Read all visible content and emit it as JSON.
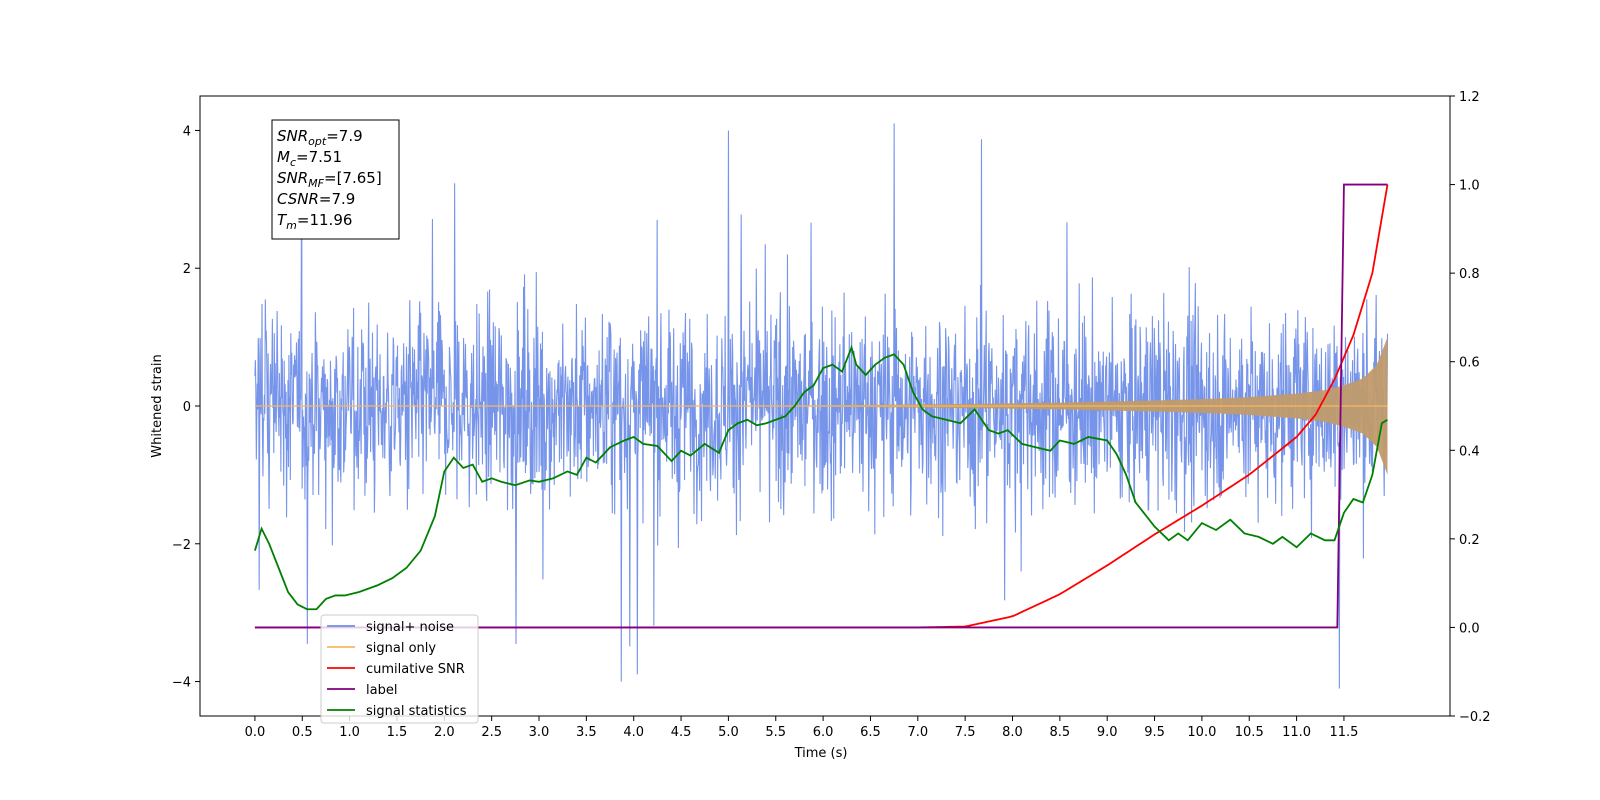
{
  "chart_data": {
    "type": "line",
    "title": "",
    "xlabel": "Time (s)",
    "ylabel": "Whitened strain",
    "xlim": [
      -0.58,
      12.62
    ],
    "ylim": [
      -4.5,
      4.5
    ],
    "ylim_right": [
      -0.2,
      1.2
    ],
    "xticks": [
      0.0,
      0.5,
      1.0,
      1.5,
      2.0,
      2.5,
      3.0,
      3.5,
      4.0,
      4.5,
      5.0,
      5.5,
      6.0,
      6.5,
      7.0,
      7.5,
      8.0,
      8.5,
      9.0,
      9.5,
      10.0,
      10.5,
      11.0,
      11.5
    ],
    "xtick_labels": [
      "0.0",
      "0.5",
      "1.0",
      "1.5",
      "2.0",
      "2.5",
      "3.0",
      "3.5",
      "4.0",
      "4.5",
      "5.0",
      "5.5",
      "6.0",
      "6.5",
      "7.0",
      "7.5",
      "8.0",
      "8.5",
      "9.0",
      "9.5",
      "10.0",
      "10.5",
      "11.0",
      "11.5"
    ],
    "yticks_left": [
      -4,
      -2,
      0,
      2,
      4
    ],
    "ytick_labels_left": [
      "−4",
      "−2",
      "0",
      "2",
      "4"
    ],
    "yticks_right": [
      -0.2,
      0.0,
      0.2,
      0.4,
      0.6,
      0.8,
      1.0,
      1.2
    ],
    "ytick_labels_right": [
      "−0.2",
      "0.0",
      "0.2",
      "0.4",
      "0.6",
      "0.8",
      "1.0",
      "1.2"
    ],
    "grid": false,
    "legend_position": "lower-left",
    "duration": 11.96,
    "annotation": {
      "lines": [
        {
          "main": "SNR",
          "sub": "opt",
          "rest": "=7.9"
        },
        {
          "main": "M",
          "sub": "c",
          "rest": "=7.51"
        },
        {
          "main": "SNR",
          "sub": "MF",
          "rest": "=[7.65]"
        },
        {
          "main": "CSNR",
          "sub": "",
          "rest": "=7.9"
        },
        {
          "main": "T",
          "sub": "m",
          "rest": "=11.96"
        }
      ]
    },
    "series": [
      {
        "name": "signal+ noise",
        "axis": "left",
        "color": "#6f8ee8",
        "description": "dense whitened noise time series, typical range -2 to 2, peaks near +4.1 at 6.75 s and near -4.1 at 11.45 s"
      },
      {
        "name": "signal only",
        "axis": "left",
        "color": "#f5b95f",
        "envelope": {
          "x": [
            0.0,
            2.0,
            4.0,
            6.0,
            7.5,
            8.5,
            9.5,
            10.0,
            10.5,
            11.0,
            11.3,
            11.5,
            11.7,
            11.85,
            11.96
          ],
          "amplitude": [
            0.0,
            0.0,
            0.005,
            0.01,
            0.03,
            0.05,
            0.08,
            0.1,
            0.13,
            0.18,
            0.23,
            0.3,
            0.4,
            0.6,
            1.0
          ]
        }
      },
      {
        "name": "cumilative SNR",
        "axis": "right",
        "color": "#ff0000",
        "x": [
          0.0,
          7.0,
          7.5,
          8.0,
          8.5,
          9.0,
          9.5,
          10.0,
          10.5,
          11.0,
          11.2,
          11.4,
          11.6,
          11.8,
          11.96
        ],
        "values": [
          0.0,
          0.0,
          0.002,
          0.025,
          0.075,
          0.14,
          0.21,
          0.275,
          0.345,
          0.43,
          0.48,
          0.56,
          0.66,
          0.8,
          1.0
        ]
      },
      {
        "name": "label",
        "axis": "right",
        "color": "#800080",
        "x": [
          0.0,
          11.43,
          11.5,
          11.96
        ],
        "values": [
          0.0,
          0.0,
          1.0,
          1.0
        ]
      },
      {
        "name": "signal statistics",
        "axis": "left",
        "color": "#008000",
        "x": [
          0.0,
          0.07,
          0.15,
          0.25,
          0.35,
          0.45,
          0.55,
          0.65,
          0.75,
          0.85,
          0.95,
          1.1,
          1.3,
          1.45,
          1.6,
          1.75,
          1.9,
          2.0,
          2.1,
          2.2,
          2.3,
          2.4,
          2.5,
          2.6,
          2.75,
          2.9,
          3.0,
          3.15,
          3.3,
          3.4,
          3.5,
          3.6,
          3.75,
          3.9,
          4.0,
          4.1,
          4.25,
          4.4,
          4.5,
          4.6,
          4.75,
          4.9,
          5.0,
          5.1,
          5.2,
          5.3,
          5.4,
          5.5,
          5.6,
          5.7,
          5.8,
          5.9,
          6.0,
          6.1,
          6.2,
          6.3,
          6.35,
          6.45,
          6.55,
          6.65,
          6.75,
          6.85,
          6.95,
          7.05,
          7.15,
          7.3,
          7.45,
          7.6,
          7.75,
          7.85,
          7.95,
          8.1,
          8.25,
          8.4,
          8.5,
          8.65,
          8.8,
          9.0,
          9.1,
          9.2,
          9.3,
          9.5,
          9.65,
          9.75,
          9.85,
          10.0,
          10.15,
          10.3,
          10.45,
          10.6,
          10.75,
          10.85,
          11.0,
          11.15,
          11.3,
          11.4,
          11.5,
          11.6,
          11.7,
          11.8,
          11.9,
          11.96
        ],
        "values": [
          -2.1,
          -1.78,
          -2.0,
          -2.35,
          -2.7,
          -2.88,
          -2.95,
          -2.95,
          -2.8,
          -2.75,
          -2.75,
          -2.7,
          -2.6,
          -2.5,
          -2.35,
          -2.1,
          -1.6,
          -0.95,
          -0.75,
          -0.9,
          -0.85,
          -1.1,
          -1.05,
          -1.1,
          -1.15,
          -1.08,
          -1.1,
          -1.05,
          -0.95,
          -1.0,
          -0.75,
          -0.82,
          -0.6,
          -0.5,
          -0.45,
          -0.55,
          -0.58,
          -0.8,
          -0.65,
          -0.72,
          -0.55,
          -0.68,
          -0.35,
          -0.25,
          -0.2,
          -0.28,
          -0.25,
          -0.2,
          -0.15,
          0.0,
          0.2,
          0.3,
          0.55,
          0.6,
          0.5,
          0.85,
          0.6,
          0.45,
          0.6,
          0.7,
          0.75,
          0.6,
          0.2,
          -0.05,
          -0.15,
          -0.2,
          -0.25,
          -0.05,
          -0.35,
          -0.4,
          -0.35,
          -0.55,
          -0.6,
          -0.65,
          -0.5,
          -0.55,
          -0.45,
          -0.5,
          -0.7,
          -1.0,
          -1.4,
          -1.75,
          -1.95,
          -1.85,
          -1.95,
          -1.7,
          -1.8,
          -1.65,
          -1.85,
          -1.9,
          -2.0,
          -1.9,
          -2.05,
          -1.85,
          -1.95,
          -1.95,
          -1.55,
          -1.35,
          -1.4,
          -1.0,
          -0.25,
          -0.2
        ]
      }
    ],
    "legend": [
      {
        "label": "signal+ noise",
        "color": "#6f8ee8"
      },
      {
        "label": "signal only",
        "color": "#f5b95f"
      },
      {
        "label": "cumilative SNR",
        "color": "#ff0000"
      },
      {
        "label": "label",
        "color": "#800080"
      },
      {
        "label": "signal statistics",
        "color": "#008000"
      }
    ]
  }
}
